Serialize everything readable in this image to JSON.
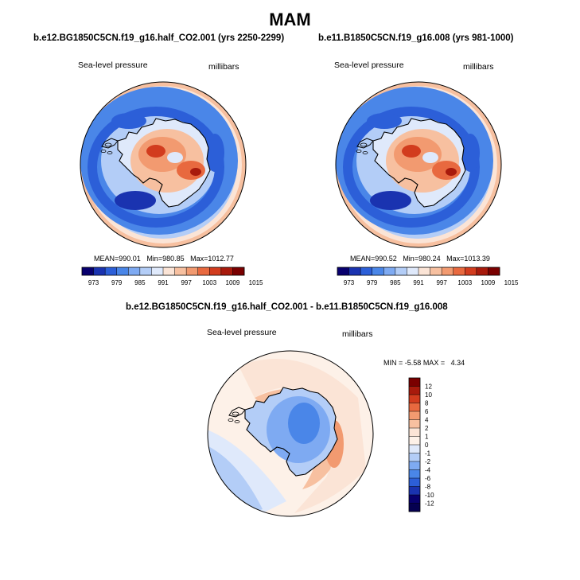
{
  "page": {
    "title": "MAM"
  },
  "chart_data": [
    {
      "type": "heatmap",
      "projection": "south polar stereographic",
      "title": "b.e12.BG1850C5CN.f19_g16.half_CO2.001 (yrs 2250-2299)",
      "left_label": "Sea-level pressure",
      "right_label": "millibars",
      "stats": {
        "mean_label": "MEAN=",
        "mean": "990.01",
        "min_label": "Min=",
        "min": "980.85",
        "max_label": "Max=",
        "max": "1012.77"
      },
      "colorbar": {
        "levels": [
          "973",
          "979",
          "985",
          "991",
          "997",
          "1003",
          "1009",
          "1015"
        ],
        "colors": [
          "#08006e",
          "#1a33b0",
          "#2c5fd8",
          "#4a86e8",
          "#7eaaf2",
          "#b3cdf7",
          "#dfe9fb",
          "#fbe4d6",
          "#f7c0a0",
          "#f29a70",
          "#e8693f",
          "#d23c1e",
          "#a81a0c",
          "#7a0000"
        ]
      }
    },
    {
      "type": "heatmap",
      "projection": "south polar stereographic",
      "title": "b.e11.B1850C5CN.f19_g16.008 (yrs 981-1000)",
      "left_label": "Sea-level pressure",
      "right_label": "millibars",
      "stats": {
        "mean_label": "MEAN=",
        "mean": "990.52",
        "min_label": "Min=",
        "min": "980.24",
        "max_label": "Max=",
        "max": "1013.39"
      },
      "colorbar": {
        "levels": [
          "973",
          "979",
          "985",
          "991",
          "997",
          "1003",
          "1009",
          "1015"
        ],
        "colors": [
          "#08006e",
          "#1a33b0",
          "#2c5fd8",
          "#4a86e8",
          "#7eaaf2",
          "#b3cdf7",
          "#dfe9fb",
          "#fbe4d6",
          "#f7c0a0",
          "#f29a70",
          "#e8693f",
          "#d23c1e",
          "#a81a0c",
          "#7a0000"
        ]
      }
    },
    {
      "type": "heatmap",
      "projection": "south polar stereographic",
      "title": "b.e12.BG1850C5CN.f19_g16.half_CO2.001 - b.e11.B1850C5CN.f19_g16.008",
      "left_label": "Sea-level pressure",
      "right_label": "millibars",
      "stats": {
        "min_label": "MIN =",
        "min": "-5.58",
        "max_label": "MAX =",
        "max": "4.34"
      },
      "colorbar": {
        "orientation": "vertical",
        "levels": [
          "12",
          "10",
          "8",
          "6",
          "4",
          "2",
          "1",
          "0",
          "-1",
          "-2",
          "-4",
          "-6",
          "-8",
          "-10",
          "-12"
        ],
        "colors": [
          "#7a0000",
          "#a81a0c",
          "#d23c1e",
          "#e8693f",
          "#f29a70",
          "#f7c0a0",
          "#fbe4d6",
          "#fdf1e8",
          "#dfe9fb",
          "#b3cdf7",
          "#7eaaf2",
          "#4a86e8",
          "#2c5fd8",
          "#1a33b0",
          "#08006e",
          "#050050"
        ]
      }
    }
  ]
}
